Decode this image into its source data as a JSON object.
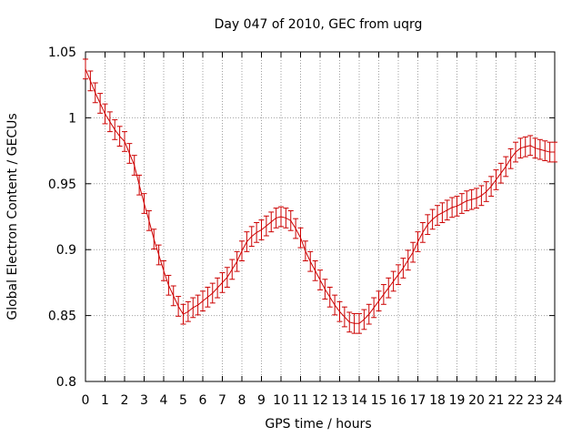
{
  "chart_data": {
    "type": "line",
    "title": "Day 047 of 2010, GEC from uqrg",
    "xlabel": "GPS time / hours",
    "ylabel": "Global Electron Content / GECUs",
    "xlim": [
      0,
      24
    ],
    "ylim": [
      0.8,
      1.05
    ],
    "x_ticks": [
      "0",
      "1",
      "2",
      "3",
      "4",
      "5",
      "6",
      "7",
      "8",
      "9",
      "10",
      "11",
      "12",
      "13",
      "14",
      "15",
      "16",
      "17",
      "18",
      "19",
      "20",
      "21",
      "22",
      "23",
      "24"
    ],
    "y_ticks": [
      "0.8",
      "0.85",
      "0.9",
      "0.95",
      "1",
      "1.05"
    ],
    "grid": true,
    "series": [
      {
        "name": "GEC",
        "color": "#cc0000",
        "error": 0.0075,
        "x": [
          0,
          0.25,
          0.5,
          0.75,
          1,
          1.25,
          1.5,
          1.75,
          2,
          2.25,
          2.5,
          2.75,
          3,
          3.25,
          3.5,
          3.75,
          4,
          4.25,
          4.5,
          4.75,
          5,
          5.25,
          5.5,
          5.75,
          6,
          6.25,
          6.5,
          6.75,
          7,
          7.25,
          7.5,
          7.75,
          8,
          8.25,
          8.5,
          8.75,
          9,
          9.25,
          9.5,
          9.75,
          10,
          10.25,
          10.5,
          10.75,
          11,
          11.25,
          11.5,
          11.75,
          12,
          12.25,
          12.5,
          12.75,
          13,
          13.25,
          13.5,
          13.75,
          14,
          14.25,
          14.5,
          14.75,
          15,
          15.25,
          15.5,
          15.75,
          16,
          16.25,
          16.5,
          16.75,
          17,
          17.25,
          17.5,
          17.75,
          18,
          18.25,
          18.5,
          18.75,
          19,
          19.25,
          19.5,
          19.75,
          20,
          20.25,
          20.5,
          20.75,
          21,
          21.25,
          21.5,
          21.75,
          22,
          22.25,
          22.5,
          22.75,
          23,
          23.25,
          23.5,
          23.75,
          24
        ],
        "values": [
          1.037,
          1.028,
          1.019,
          1.011,
          1.003,
          0.997,
          0.991,
          0.986,
          0.982,
          0.973,
          0.964,
          0.949,
          0.935,
          0.922,
          0.908,
          0.896,
          0.884,
          0.873,
          0.865,
          0.857,
          0.851,
          0.853,
          0.856,
          0.858,
          0.861,
          0.864,
          0.867,
          0.871,
          0.875,
          0.879,
          0.885,
          0.891,
          0.899,
          0.906,
          0.91,
          0.913,
          0.915,
          0.918,
          0.921,
          0.924,
          0.925,
          0.924,
          0.922,
          0.916,
          0.909,
          0.899,
          0.891,
          0.884,
          0.877,
          0.87,
          0.864,
          0.858,
          0.853,
          0.849,
          0.845,
          0.844,
          0.844,
          0.847,
          0.851,
          0.856,
          0.861,
          0.866,
          0.871,
          0.876,
          0.881,
          0.886,
          0.892,
          0.898,
          0.906,
          0.913,
          0.919,
          0.923,
          0.926,
          0.928,
          0.93,
          0.932,
          0.933,
          0.935,
          0.937,
          0.938,
          0.939,
          0.941,
          0.944,
          0.948,
          0.953,
          0.958,
          0.963,
          0.969,
          0.974,
          0.977,
          0.978,
          0.979,
          0.977,
          0.976,
          0.975,
          0.974,
          0.974
        ]
      }
    ]
  }
}
